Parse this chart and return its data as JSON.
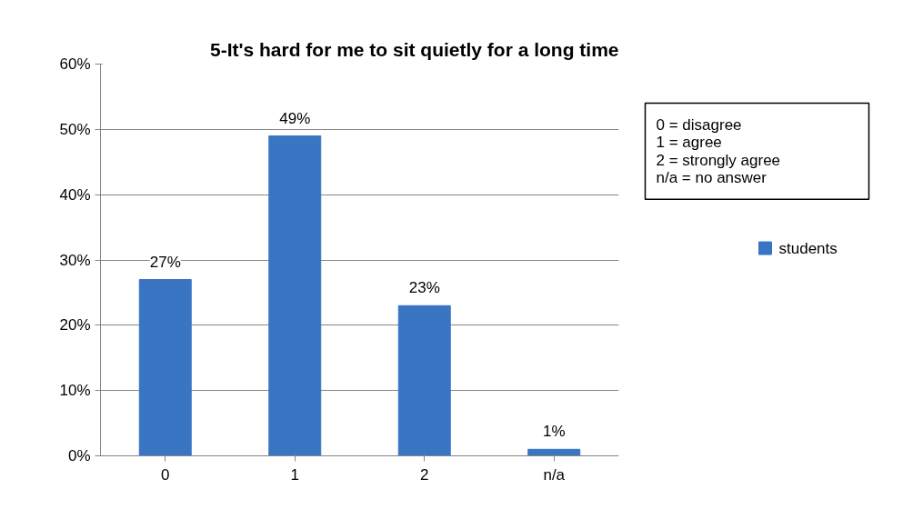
{
  "chart_data": {
    "type": "bar",
    "title": "5-It's hard for me to sit quietly for a long time",
    "categories": [
      "0",
      "1",
      "2",
      "n/a"
    ],
    "series": [
      {
        "name": "students",
        "color": "#3a75c4",
        "values": [
          27,
          49,
          23,
          1
        ],
        "value_labels": [
          "27%",
          "49%",
          "23%",
          "1%"
        ]
      }
    ],
    "ylim": [
      0,
      60
    ],
    "yticks": [
      {
        "value": 0,
        "label": "0%"
      },
      {
        "value": 10,
        "label": "10%"
      },
      {
        "value": 20,
        "label": "20%"
      },
      {
        "value": 30,
        "label": "30%"
      },
      {
        "value": 40,
        "label": "40%"
      },
      {
        "value": 50,
        "label": "50%"
      },
      {
        "value": 60,
        "label": "60%"
      }
    ],
    "grid": "y",
    "legend": "right",
    "annotations": [
      "0 = disagree",
      "1 = agree",
      "2 = strongly agree",
      "n/a = no answer"
    ]
  }
}
